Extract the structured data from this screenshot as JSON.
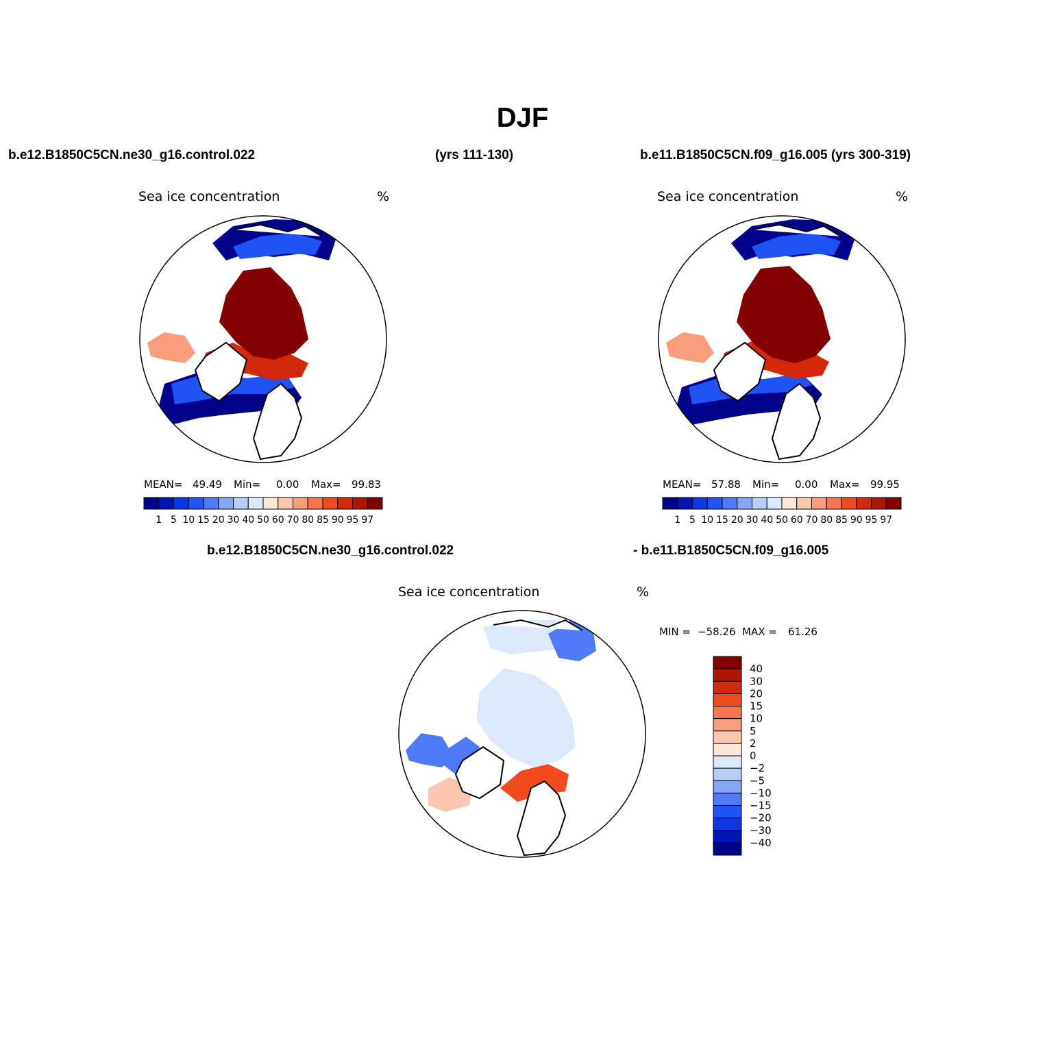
{
  "title": "DJF",
  "header_left_case": "b.e12.B1850C5CN.ne30_g16.control.022",
  "header_left_years": "(yrs 111-130)",
  "header_right": "b.e11.B1850C5CN.f09_g16.005 (yrs 300-319)",
  "diff_header_left": "b.e12.B1850C5CN.ne30_g16.control.022",
  "diff_header_right": "- b.e11.B1850C5CN.f09_g16.005",
  "panels": [
    {
      "variable": "Sea ice concentration",
      "units": "%",
      "mean_label": "MEAN=",
      "mean": "49.49",
      "min_label": "Min=",
      "min": "0.00",
      "max_label": "Max=",
      "max": "99.83"
    },
    {
      "variable": "Sea ice concentration",
      "units": "%",
      "mean_label": "MEAN=",
      "mean": "57.88",
      "min_label": "Min=",
      "min": "0.00",
      "max_label": "Max=",
      "max": "99.95"
    }
  ],
  "diff_panel": {
    "variable": "Sea ice concentration",
    "units": "%",
    "min_label": "MIN =",
    "min": "−58.26",
    "max_label": "MAX =",
    "max": "61.26"
  },
  "colorbar_abs": {
    "ticks": [
      "1",
      "5",
      "10",
      "15",
      "20",
      "30",
      "40",
      "50",
      "60",
      "70",
      "80",
      "85",
      "90",
      "95",
      "97"
    ],
    "colors": [
      "#00028c",
      "#0016b4",
      "#0d37e0",
      "#2053f5",
      "#4f7af7",
      "#84a5f8",
      "#b6cdfa",
      "#dce9fd",
      "#fde8d8",
      "#fcc7ae",
      "#f99d7a",
      "#f7764e",
      "#f24a1f",
      "#d4280a",
      "#ad1700",
      "#820000"
    ]
  },
  "colorbar_diff": {
    "ticks": [
      "40",
      "30",
      "20",
      "15",
      "10",
      "5",
      "2",
      "0",
      "−2",
      "−5",
      "−10",
      "−15",
      "−20",
      "−30",
      "−40"
    ],
    "colors": [
      "#820000",
      "#ad1700",
      "#d4280a",
      "#f24a1f",
      "#f7764e",
      "#f99d7a",
      "#fcc7ae",
      "#fde8d8",
      "#dce9fd",
      "#b6cdfa",
      "#84a5f8",
      "#4f7af7",
      "#2053f5",
      "#0d37e0",
      "#0016b4",
      "#00028c"
    ]
  },
  "map_fill_colors": {
    "ice_core": "#820000",
    "ice_high": "#d4280a",
    "ice_mid": "#f99d7a",
    "edge_low": "#2053f5",
    "edge_lowest": "#00028c",
    "diff_slight_neg": "#dce9fd",
    "diff_neg": "#4f7af7",
    "diff_pos": "#f24a1f",
    "diff_slight_pos": "#fcc7ae"
  }
}
